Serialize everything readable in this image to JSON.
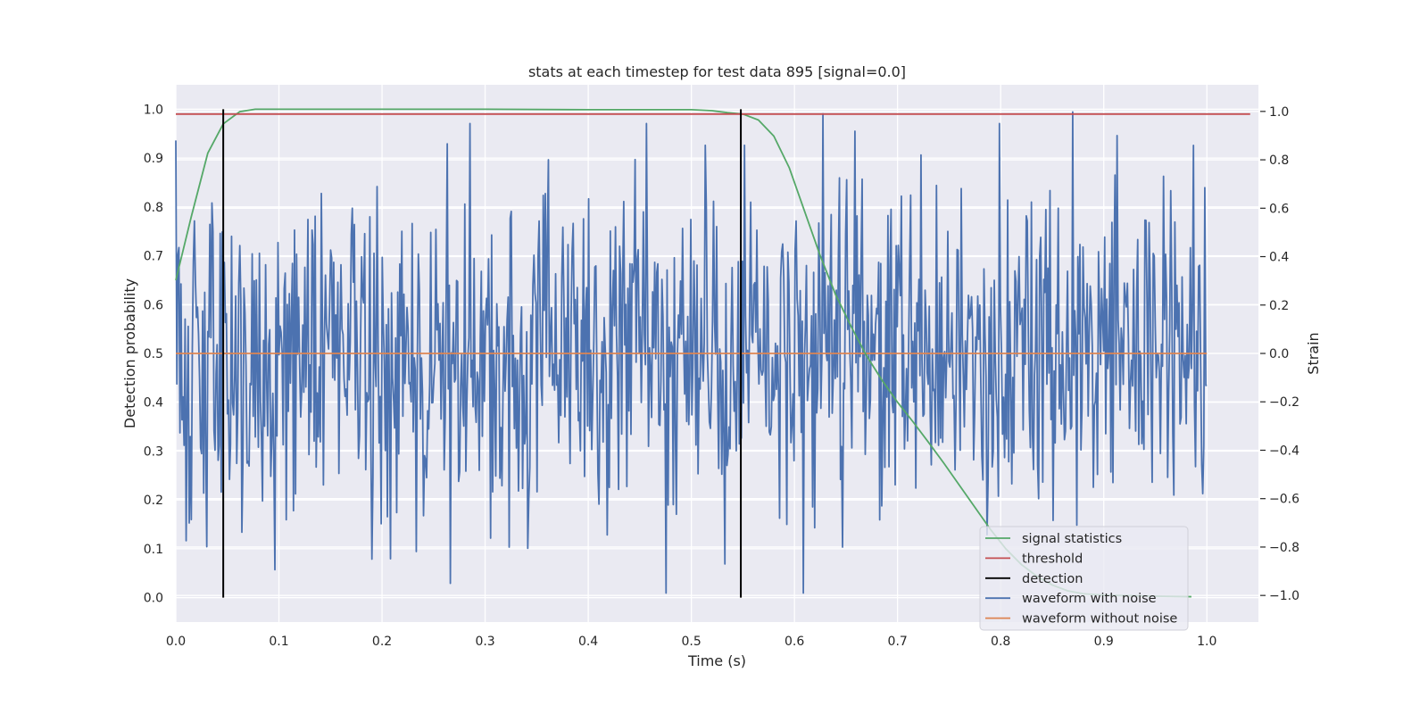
{
  "chart_data": {
    "type": "line",
    "title": "stats at each timestep for test data 895 [signal=0.0]",
    "xlabel": "Time (s)",
    "ylabel": "Detection probability",
    "ylabel_right": "Strain",
    "xlim": [
      0.0,
      1.05
    ],
    "ylim": [
      -0.05,
      1.05
    ],
    "ylim_right": [
      -1.11,
      1.11
    ],
    "x_ticks": [
      "0.0",
      "0.1",
      "0.2",
      "0.3",
      "0.4",
      "0.5",
      "0.6",
      "0.7",
      "0.8",
      "0.9",
      "1.0"
    ],
    "y_ticks": [
      "0.0",
      "0.1",
      "0.2",
      "0.3",
      "0.4",
      "0.5",
      "0.6",
      "0.7",
      "0.8",
      "0.9",
      "1.0"
    ],
    "y_ticks_right": [
      "−1.0",
      "−0.8",
      "−0.6",
      "−0.4",
      "−0.2",
      "0.0",
      "0.2",
      "0.4",
      "0.6",
      "0.8",
      "1.0"
    ],
    "grid": true,
    "legend_position": "bottom-right",
    "colors": {
      "signal_statistics": "#55a868",
      "threshold": "#c44e52",
      "detection": "#000000",
      "waveform_with_noise": "#4c72b0",
      "waveform_without_noise": "#dd8452",
      "plot_background": "#eaeaf2",
      "grid": "#ffffff"
    },
    "series": [
      {
        "name": "signal statistics",
        "axis": "left",
        "x": [
          0.0,
          0.015,
          0.031,
          0.046,
          0.062,
          0.077,
          0.092,
          0.108,
          0.2,
          0.3,
          0.4,
          0.5,
          0.52,
          0.535,
          0.55,
          0.565,
          0.58,
          0.595,
          0.61,
          0.625,
          0.64,
          0.655,
          0.67,
          0.685,
          0.7,
          0.715,
          0.73,
          0.745,
          0.76,
          0.775,
          0.79,
          0.805,
          0.82,
          0.835,
          0.85,
          0.865,
          0.88,
          0.9,
          0.95,
          0.985
        ],
        "y": [
          0.65,
          0.78,
          0.91,
          0.97,
          0.995,
          1.0,
          1.0,
          1.0,
          1.0,
          1.0,
          0.999,
          0.999,
          0.997,
          0.993,
          0.99,
          0.978,
          0.945,
          0.88,
          0.79,
          0.7,
          0.62,
          0.555,
          0.495,
          0.445,
          0.4,
          0.36,
          0.318,
          0.275,
          0.23,
          0.185,
          0.14,
          0.1,
          0.068,
          0.044,
          0.026,
          0.014,
          0.008,
          0.005,
          0.003,
          0.002
        ]
      },
      {
        "name": "threshold",
        "axis": "left",
        "x": [
          0.0,
          1.042
        ],
        "y": [
          0.99,
          0.99
        ]
      },
      {
        "name": "detection",
        "axis": "left",
        "segments": [
          {
            "x": 0.046,
            "y": [
              0.0,
              1.0
            ]
          },
          {
            "x": 0.548,
            "y": [
              0.0,
              1.0
            ]
          }
        ]
      },
      {
        "name": "waveform with noise",
        "axis": "right",
        "x_range": [
          0.0,
          1.0
        ],
        "n_points": 1000,
        "std": 0.33,
        "y_range": [
          -1.0,
          1.0
        ],
        "y_sample": [
          0.88,
          0.3,
          -0.4,
          -0.1,
          0.3,
          -0.45,
          -0.65,
          0.45,
          -0.1,
          0.6,
          -0.85,
          0.25,
          -0.2,
          0.5,
          -0.95,
          0.95,
          0.05,
          -0.8,
          -0.6,
          0.8,
          0.45,
          -0.3,
          -0.75,
          -0.55,
          0.95,
          -0.99,
          0.05,
          0.86,
          -0.87,
          0.86,
          0.36,
          0.32,
          -0.99,
          0.99,
          -0.8,
          0.72,
          -0.63,
          0.65,
          0.82,
          -0.35,
          -0.4,
          0.2,
          0.95,
          0.4,
          -0.6,
          0.6,
          0.4,
          -0.5,
          0.9,
          0.25,
          -0.1,
          0.1
        ]
      },
      {
        "name": "waveform without noise",
        "axis": "right",
        "x": [
          0.0,
          1.0
        ],
        "y": [
          0.0,
          0.0
        ]
      }
    ]
  }
}
